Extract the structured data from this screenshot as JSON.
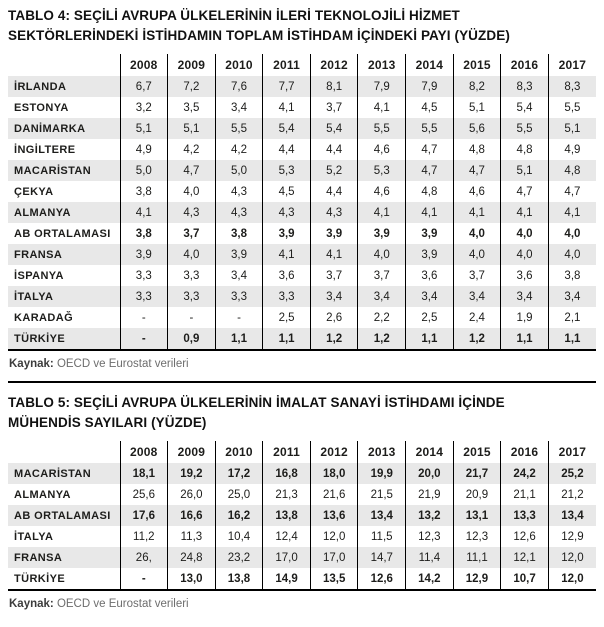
{
  "table4": {
    "title": "TABLO 4: SEÇİLİ AVRUPA ÜLKELERİNİN İLERİ TEKNOLOJİLİ HİZMET\nSEKTÖRLERİNDEKİ İSTİHDAMIN TOPLAM İSTİHDAM İÇİNDEKİ PAYI (YÜZDE)",
    "years": [
      "2008",
      "2009",
      "2010",
      "2011",
      "2012",
      "2013",
      "2014",
      "2015",
      "2016",
      "2017"
    ],
    "rows": [
      {
        "label": "İRLANDA",
        "bold": false,
        "values": [
          "6,7",
          "7,2",
          "7,6",
          "7,7",
          "8,1",
          "7,9",
          "7,9",
          "8,2",
          "8,3",
          "8,3"
        ]
      },
      {
        "label": "ESTONYA",
        "bold": false,
        "values": [
          "3,2",
          "3,5",
          "3,4",
          "4,1",
          "3,7",
          "4,1",
          "4,5",
          "5,1",
          "5,4",
          "5,5"
        ]
      },
      {
        "label": "DANİMARKA",
        "bold": false,
        "values": [
          "5,1",
          "5,1",
          "5,5",
          "5,4",
          "5,4",
          "5,5",
          "5,5",
          "5,6",
          "5,5",
          "5,1"
        ]
      },
      {
        "label": "İNGİLTERE",
        "bold": false,
        "values": [
          "4,9",
          "4,2",
          "4,2",
          "4,4",
          "4,4",
          "4,6",
          "4,7",
          "4,8",
          "4,8",
          "4,9"
        ]
      },
      {
        "label": "MACARİSTAN",
        "bold": false,
        "values": [
          "5,0",
          "4,7",
          "5,0",
          "5,3",
          "5,2",
          "5,3",
          "4,7",
          "4,7",
          "5,1",
          "4,8"
        ]
      },
      {
        "label": "ÇEKYA",
        "bold": false,
        "values": [
          "3,8",
          "4,0",
          "4,3",
          "4,5",
          "4,4",
          "4,6",
          "4,8",
          "4,6",
          "4,7",
          "4,7"
        ]
      },
      {
        "label": "ALMANYA",
        "bold": false,
        "values": [
          "4,1",
          "4,3",
          "4,3",
          "4,3",
          "4,3",
          "4,1",
          "4,1",
          "4,1",
          "4,1",
          "4,1"
        ]
      },
      {
        "label": "AB ORTALAMASI",
        "bold": true,
        "values": [
          "3,8",
          "3,7",
          "3,8",
          "3,9",
          "3,9",
          "3,9",
          "3,9",
          "4,0",
          "4,0",
          "4,0"
        ]
      },
      {
        "label": "FRANSA",
        "bold": false,
        "values": [
          "3,9",
          "4,0",
          "3,9",
          "4,1",
          "4,1",
          "4,0",
          "3,9",
          "4,0",
          "4,0",
          "4,0"
        ]
      },
      {
        "label": "İSPANYA",
        "bold": false,
        "values": [
          "3,3",
          "3,3",
          "3,4",
          "3,6",
          "3,7",
          "3,7",
          "3,6",
          "3,7",
          "3,6",
          "3,8"
        ]
      },
      {
        "label": "İTALYA",
        "bold": false,
        "values": [
          "3,3",
          "3,3",
          "3,3",
          "3,3",
          "3,4",
          "3,4",
          "3,4",
          "3,4",
          "3,4",
          "3,4"
        ]
      },
      {
        "label": "KARADAĞ",
        "bold": false,
        "values": [
          "-",
          "-",
          "-",
          "2,5",
          "2,6",
          "2,2",
          "2,5",
          "2,4",
          "1,9",
          "2,1"
        ]
      },
      {
        "label": "TÜRKİYE",
        "bold": true,
        "values": [
          "-",
          "0,9",
          "1,1",
          "1,1",
          "1,2",
          "1,2",
          "1,1",
          "1,2",
          "1,1",
          "1,1"
        ]
      }
    ],
    "source_label": "Kaynak:",
    "source_text": " OECD ve Eurostat verileri"
  },
  "table5": {
    "title": "TABLO 5: SEÇİLİ AVRUPA ÜLKELERİNİN İMALAT SANAYİ İSTİHDAMI İÇİNDE\nMÜHENDİS SAYILARI (YÜZDE)",
    "years": [
      "2008",
      "2009",
      "2010",
      "2011",
      "2012",
      "2013",
      "2014",
      "2015",
      "2016",
      "2017"
    ],
    "rows": [
      {
        "label": "MACARİSTAN",
        "bold": true,
        "values": [
          "18,1",
          "19,2",
          "17,2",
          "16,8",
          "18,0",
          "19,9",
          "20,0",
          "21,7",
          "24,2",
          "25,2"
        ]
      },
      {
        "label": "ALMANYA",
        "bold": false,
        "values": [
          "25,6",
          "26,0",
          "25,0",
          "21,3",
          "21,6",
          "21,5",
          "21,9",
          "20,9",
          "21,1",
          "21,2"
        ]
      },
      {
        "label": "AB ORTALAMASI",
        "bold": true,
        "values": [
          "17,6",
          "16,6",
          "16,2",
          "13,8",
          "13,6",
          "13,4",
          "13,2",
          "13,1",
          "13,3",
          "13,4"
        ]
      },
      {
        "label": "İTALYA",
        "bold": false,
        "values": [
          "11,2",
          "11,3",
          "10,4",
          "12,4",
          "12,0",
          "11,5",
          "12,3",
          "12,3",
          "12,6",
          "12,9"
        ]
      },
      {
        "label": "FRANSA",
        "bold": false,
        "values": [
          "26,",
          "24,8",
          "23,2",
          "17,0",
          "17,0",
          "14,7",
          "11,4",
          "11,1",
          "12,1",
          "12,0"
        ]
      },
      {
        "label": "TÜRKİYE",
        "bold": true,
        "values": [
          "-",
          "13,0",
          "13,8",
          "14,9",
          "13,5",
          "12,6",
          "14,2",
          "12,9",
          "10,7",
          "12,0"
        ]
      }
    ],
    "source_label": "Kaynak:",
    "source_text": " OECD ve Eurostat verileri"
  },
  "colors": {
    "row_shade": "#e8e8e8",
    "grid_line": "#000000",
    "text": "#1d1d1b"
  }
}
